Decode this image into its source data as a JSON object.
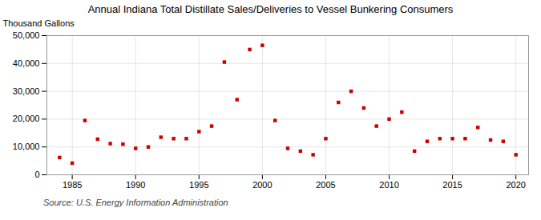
{
  "chart_data": {
    "type": "scatter",
    "title": "Annual Indiana Total Distillate Sales/Deliveries to Vessel Bunkering Consumers",
    "ylabel": "Thousand Gallons",
    "annotation": "Source: U.S. Energy Information Administration",
    "x": [
      1984,
      1985,
      1986,
      1987,
      1988,
      1989,
      1990,
      1991,
      1992,
      1993,
      1994,
      1995,
      1996,
      1997,
      1998,
      1999,
      2000,
      2001,
      2002,
      2003,
      2004,
      2005,
      2006,
      2007,
      2008,
      2009,
      2010,
      2011,
      2012,
      2013,
      2014,
      2015,
      2016,
      2017,
      2018,
      2019,
      2020
    ],
    "values": [
      6200,
      4200,
      19500,
      12800,
      11200,
      11000,
      9500,
      10000,
      13500,
      13000,
      13000,
      15500,
      17500,
      40500,
      27000,
      45000,
      46500,
      19500,
      9500,
      8500,
      7200,
      13000,
      26000,
      30000,
      24000,
      17500,
      20000,
      22500,
      8500,
      12000,
      13000,
      13000,
      13000,
      17000,
      12500,
      12000,
      7200
    ],
    "color": "#cc0000",
    "marker": "square",
    "xlim": [
      1983,
      2021
    ],
    "ylim": [
      0,
      50000
    ],
    "xticks": [
      1985,
      1990,
      1995,
      2000,
      2005,
      2010,
      2015,
      2020
    ],
    "yticks": [
      0,
      {
        "value": 10000,
        "label": "10,000"
      },
      {
        "value": 20000,
        "label": "20,000"
      },
      {
        "value": 30000,
        "label": "30,000"
      },
      {
        "value": 40000,
        "label": "40,000"
      },
      {
        "value": 50000,
        "label": "50,000"
      }
    ],
    "grid": true
  }
}
